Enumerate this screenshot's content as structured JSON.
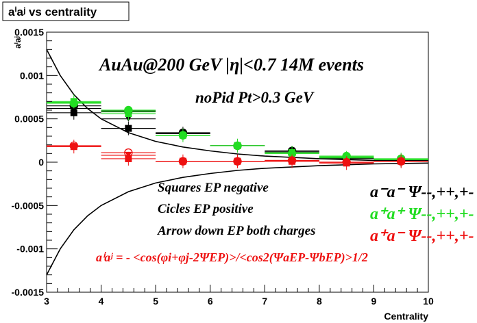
{
  "chart_data": {
    "type": "scatter",
    "title": "aⁱaʲ vs centrality",
    "xlabel": "Centrality",
    "ylabel": "aⁱaʲ",
    "xlim": [
      3,
      10
    ],
    "ylim": [
      -0.0015,
      0.0015
    ],
    "x_ticks": [
      "3",
      "4",
      "5",
      "6",
      "7",
      "8",
      "9",
      "10"
    ],
    "y_ticks": [
      "-0.0015",
      "-0.001",
      "-0.0005",
      "0",
      "0.0005",
      "0.001",
      "0.0015"
    ],
    "grid": false,
    "annotations": {
      "line1": "AuAu@200 GeV |η|<0.7 14M events",
      "line2": "noPid Pt>0.3 GeV",
      "squares": "Squares EP negative",
      "circles": "Cicles EP positive",
      "arrows": "Arrow down EP both charges",
      "formula": "aⁱaʲ = - <cos(φi+φj-2ΨEP)>/<cos2(ΨaEP-ΨbEP)>1/2"
    },
    "legend": [
      {
        "label": "a⁻a⁻  Ψ--,++,+-",
        "color": "#000000"
      },
      {
        "label": "a⁺a⁺  Ψ--,++,+-",
        "color": "#22dd22"
      },
      {
        "label": "a⁺a⁻  Ψ--,++,+-",
        "color": "#ee1111"
      }
    ],
    "series": [
      {
        "charge": "minus-minus",
        "color": "#000000",
        "x": [
          3.5,
          4.5,
          5.5,
          6.5,
          7.5,
          8.5,
          9.5
        ],
        "squares": [
          0.00057,
          0.00039,
          0.00033,
          0.00019,
          0.00011,
          4e-05,
          2e-05
        ],
        "circles": [
          0.00065,
          0.00059,
          0.00034,
          0.00019,
          0.00013,
          5e-05,
          2e-05
        ],
        "arrows": [
          0.00062,
          0.0005,
          0.00033,
          0.00019,
          0.00012,
          5e-05,
          2e-05
        ]
      },
      {
        "charge": "plus-plus",
        "color": "#22dd22",
        "x": [
          3.5,
          4.5,
          5.5,
          6.5,
          7.5,
          8.5,
          9.5
        ],
        "squares": [
          0.0007,
          0.00056,
          0.00031,
          0.00019,
          0.00011,
          5e-05,
          3e-05
        ],
        "circles": [
          0.00068,
          0.0006,
          0.00031,
          0.00019,
          0.0001,
          7e-05,
          4e-05
        ],
        "arrows": [
          0.00069,
          0.00058,
          0.00031,
          0.00019,
          0.00011,
          6e-05,
          3e-05
        ]
      },
      {
        "charge": "plus-minus",
        "color": "#ee1111",
        "x": [
          3.5,
          4.5,
          5.5,
          6.5,
          7.5,
          8.5,
          9.5
        ],
        "squares": [
          0.00018,
          4e-05,
          1e-05,
          1e-05,
          1e-05,
          -1e-05,
          1e-05
        ],
        "circles": [
          0.00019,
          0.00011,
          1e-05,
          1e-05,
          2e-05,
          0.0,
          1e-05
        ],
        "arrows": [
          0.00018,
          8e-05,
          1e-05,
          1e-05,
          2e-05,
          0.0,
          1e-05
        ]
      }
    ],
    "curves": [
      {
        "color": "#000000",
        "x": [
          3.0,
          3.25,
          3.5,
          3.75,
          4.0,
          4.5,
          5.0,
          5.5,
          6.0,
          6.5,
          7.0,
          8.0,
          9.0,
          10.0
        ],
        "y": [
          0.0013,
          0.001,
          0.00078,
          0.00062,
          0.0005,
          0.00034,
          0.00024,
          0.000175,
          0.00013,
          9.5e-05,
          7e-05,
          4e-05,
          2e-05,
          1e-05
        ]
      },
      {
        "color": "#000000",
        "x": [
          3.0,
          3.25,
          3.5,
          3.75,
          4.0,
          4.5,
          5.0,
          5.5,
          6.0,
          6.5,
          7.0,
          8.0,
          9.0,
          10.0
        ],
        "y": [
          -0.0013,
          -0.001,
          -0.00078,
          -0.00062,
          -0.0005,
          -0.00034,
          -0.00024,
          -0.000175,
          -0.00013,
          -9.5e-05,
          -7e-05,
          -4e-05,
          -2e-05,
          -1e-05
        ]
      }
    ]
  }
}
